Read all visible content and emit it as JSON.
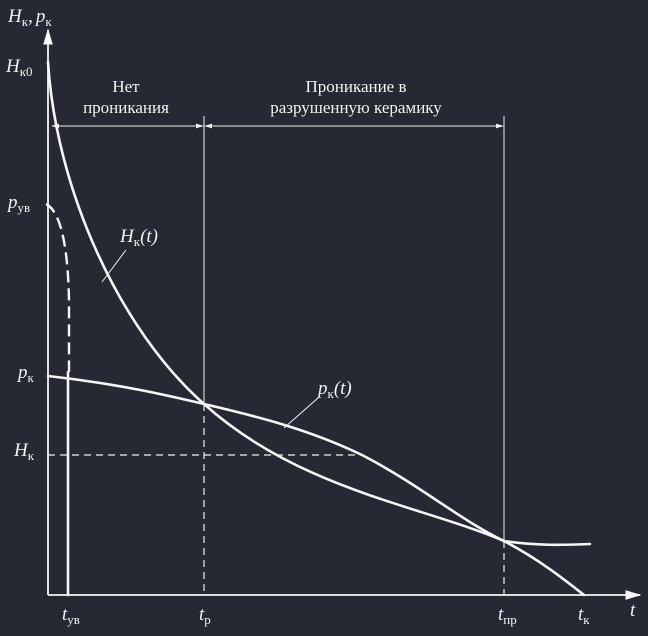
{
  "axis": {
    "y_label_main": "H",
    "y_label_sub": "к",
    "y_label_sep": ",",
    "y_label2_main": "p",
    "y_label2_sub": "к",
    "x_label": "t"
  },
  "y_ticks": {
    "hk0_main": "H",
    "hk0_sub": "к0",
    "puv_main": "p",
    "puv_sub": "ув",
    "pk_main": "p",
    "pk_sub": "к",
    "hk_main": "H",
    "hk_sub": "к"
  },
  "x_ticks": {
    "tuv_main": "t",
    "tuv_sub": "ув",
    "tp_main": "t",
    "tp_sub": "р",
    "tpr_main": "t",
    "tpr_sub": "пр",
    "tk_main": "t",
    "tk_sub": "к"
  },
  "regions": {
    "no_penetration_line1": "Нет",
    "no_penetration_line2": "проникания",
    "penetration_line1": "Проникание в",
    "penetration_line2": "разрушенную керамику"
  },
  "curve_labels": {
    "hk_main": "H",
    "hk_sub": "к",
    "hk_arg": "(t)",
    "pk_main": "p",
    "pk_sub": "к",
    "pk_arg": "(t)"
  }
}
